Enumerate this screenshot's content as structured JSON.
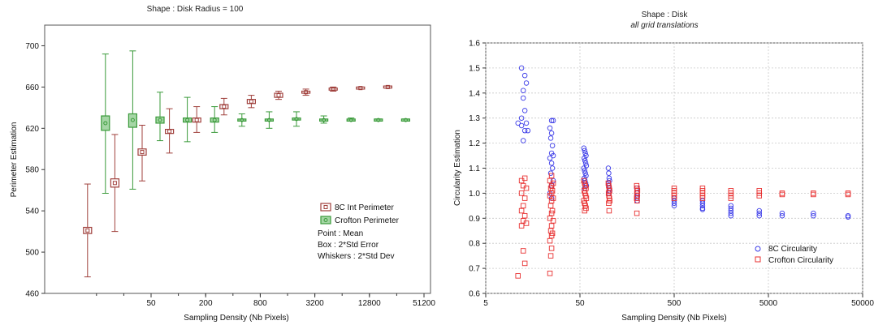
{
  "chart_data": [
    {
      "type": "box",
      "title": "Shape : Disk Radius = 100",
      "xlabel": "Sampling Density (Nb Pixels)",
      "ylabel": "Perimeter Estimation",
      "xscale": "log2",
      "xticks": [
        "50",
        "200",
        "800",
        "3200",
        "12800",
        "51200"
      ],
      "yticks": [
        460,
        500,
        540,
        580,
        620,
        660,
        700
      ],
      "ylim": [
        460,
        720
      ],
      "grid": false,
      "legend_position": "bottom-right",
      "legend_notes": [
        "Point : Mean",
        "Box : 2*Std Error",
        "Whiskers : 2*Std Dev"
      ],
      "series": [
        {
          "name": "8C Int Perimeter",
          "color": "#a0403c",
          "points": [
            {
              "x": 12.5,
              "mean": 521,
              "box": [
                518,
                524
              ],
              "whisker": [
                476,
                566
              ]
            },
            {
              "x": 25,
              "mean": 567,
              "box": [
                563,
                571
              ],
              "whisker": [
                520,
                614
              ]
            },
            {
              "x": 50,
              "mean": 597,
              "box": [
                594,
                600
              ],
              "whisker": [
                569,
                623
              ]
            },
            {
              "x": 100,
              "mean": 617,
              "box": [
                615,
                619
              ],
              "whisker": [
                596,
                639
              ]
            },
            {
              "x": 200,
              "mean": 628,
              "box": [
                626,
                630
              ],
              "whisker": [
                616,
                641
              ]
            },
            {
              "x": 400,
              "mean": 641,
              "box": [
                639,
                643
              ],
              "whisker": [
                633,
                649
              ]
            },
            {
              "x": 800,
              "mean": 646,
              "box": [
                644,
                648
              ],
              "whisker": [
                640,
                652
              ]
            },
            {
              "x": 1600,
              "mean": 652,
              "box": [
                650,
                654
              ],
              "whisker": [
                648,
                656
              ]
            },
            {
              "x": 3200,
              "mean": 655,
              "box": [
                654,
                656
              ],
              "whisker": [
                652,
                658
              ]
            },
            {
              "x": 6400,
              "mean": 658,
              "box": [
                657,
                659
              ],
              "whisker": [
                656,
                660
              ]
            },
            {
              "x": 12800,
              "mean": 659,
              "box": [
                658,
                660
              ],
              "whisker": [
                658,
                660
              ]
            },
            {
              "x": 25600,
              "mean": 660,
              "box": [
                659,
                661
              ],
              "whisker": [
                659,
                661
              ]
            }
          ]
        },
        {
          "name": "Crofton Perimeter",
          "color": "#3a9a3a",
          "points": [
            {
              "x": 12.5,
              "mean": 625,
              "box": [
                618,
                632
              ],
              "whisker": [
                557,
                692
              ]
            },
            {
              "x": 25,
              "mean": 628,
              "box": [
                621,
                634
              ],
              "whisker": [
                561,
                695
              ]
            },
            {
              "x": 50,
              "mean": 628,
              "box": [
                625,
                631
              ],
              "whisker": [
                608,
                655
              ]
            },
            {
              "x": 100,
              "mean": 628,
              "box": [
                626,
                630
              ],
              "whisker": [
                607,
                650
              ]
            },
            {
              "x": 200,
              "mean": 628,
              "box": [
                626,
                630
              ],
              "whisker": [
                616,
                641
              ]
            },
            {
              "x": 400,
              "mean": 628,
              "box": [
                627,
                629
              ],
              "whisker": [
                622,
                634
              ]
            },
            {
              "x": 800,
              "mean": 628,
              "box": [
                627,
                629
              ],
              "whisker": [
                620,
                636
              ]
            },
            {
              "x": 1600,
              "mean": 629,
              "box": [
                628,
                630
              ],
              "whisker": [
                622,
                636
              ]
            },
            {
              "x": 3200,
              "mean": 628,
              "box": [
                627,
                629
              ],
              "whisker": [
                625,
                632
              ]
            },
            {
              "x": 6400,
              "mean": 628,
              "box": [
                627,
                629
              ],
              "whisker": [
                627,
                630
              ]
            },
            {
              "x": 12800,
              "mean": 628,
              "box": [
                627,
                629
              ],
              "whisker": [
                627,
                629
              ]
            },
            {
              "x": 25600,
              "mean": 628,
              "box": [
                627,
                629
              ],
              "whisker": [
                627,
                629
              ]
            }
          ]
        }
      ]
    },
    {
      "type": "scatter",
      "title": "Shape : Disk",
      "subtitle": "all grid translations",
      "xlabel": "Sampling Density (Nb Pixels)",
      "ylabel": "Circularity Estimation",
      "xscale": "log10",
      "xticks": [
        5,
        50,
        500,
        5000,
        50000
      ],
      "xlim": [
        5,
        50000
      ],
      "yticks": [
        0.6,
        0.7,
        0.8,
        0.9,
        1.0,
        1.1,
        1.2,
        1.3,
        1.4,
        1.5,
        1.6
      ],
      "ylim": [
        0.6,
        1.6
      ],
      "grid": true,
      "legend_position": "bottom-right",
      "series": [
        {
          "name": "8C Circularity",
          "color": "#3a3ae8",
          "marker": "circle",
          "points": [
            [
              12,
              1.5
            ],
            [
              12.5,
              1.38
            ],
            [
              13,
              1.47
            ],
            [
              13.5,
              1.44
            ],
            [
              12.5,
              1.41
            ],
            [
              13,
              1.33
            ],
            [
              12,
              1.3
            ],
            [
              12.5,
              1.21
            ],
            [
              13,
              1.25
            ],
            [
              12,
              1.27
            ],
            [
              13.5,
              1.28
            ],
            [
              14,
              1.25
            ],
            [
              11,
              1.28
            ],
            [
              25,
              1.29
            ],
            [
              24,
              1.26
            ],
            [
              26,
              1.29
            ],
            [
              25,
              1.24
            ],
            [
              24.5,
              1.22
            ],
            [
              25.5,
              1.19
            ],
            [
              25,
              1.16
            ],
            [
              26,
              1.15
            ],
            [
              24,
              1.14
            ],
            [
              25,
              1.12
            ],
            [
              25.5,
              1.1
            ],
            [
              24.5,
              1.08
            ],
            [
              26,
              1.05
            ],
            [
              25,
              1.03
            ],
            [
              24,
              1.0
            ],
            [
              25,
              0.98
            ],
            [
              55,
              1.18
            ],
            [
              56,
              1.17
            ],
            [
              57,
              1.16
            ],
            [
              58,
              1.15
            ],
            [
              55.5,
              1.14
            ],
            [
              56.5,
              1.13
            ],
            [
              57.5,
              1.12
            ],
            [
              58.5,
              1.11
            ],
            [
              55,
              1.1
            ],
            [
              56,
              1.09
            ],
            [
              57,
              1.08
            ],
            [
              58,
              1.07
            ],
            [
              55.5,
              1.06
            ],
            [
              56.5,
              1.05
            ],
            [
              57.5,
              1.04
            ],
            [
              58.5,
              1.03
            ],
            [
              56,
              1.02
            ],
            [
              100,
              1.1
            ],
            [
              101,
              1.08
            ],
            [
              102,
              1.06
            ],
            [
              103,
              1.05
            ],
            [
              100.5,
              1.04
            ],
            [
              101.5,
              1.03
            ],
            [
              102.5,
              1.02
            ],
            [
              103.5,
              1.01
            ],
            [
              101,
              1.0
            ],
            [
              200,
              1.02
            ],
            [
              202,
              1.0
            ],
            [
              204,
              0.99
            ],
            [
              201,
              0.98
            ],
            [
              203,
              0.97
            ],
            [
              500,
              0.98
            ],
            [
              500,
              0.97
            ],
            [
              500,
              0.96
            ],
            [
              500,
              0.95
            ],
            [
              1000,
              0.97
            ],
            [
              1000,
              0.96
            ],
            [
              1000,
              0.95
            ],
            [
              1000,
              0.94
            ],
            [
              1000,
              0.935
            ],
            [
              2000,
              0.95
            ],
            [
              2000,
              0.94
            ],
            [
              2000,
              0.93
            ],
            [
              2000,
              0.92
            ],
            [
              2000,
              0.91
            ],
            [
              4000,
              0.93
            ],
            [
              4000,
              0.92
            ],
            [
              4000,
              0.91
            ],
            [
              7000,
              0.92
            ],
            [
              7000,
              0.91
            ],
            [
              15000,
              0.92
            ],
            [
              15000,
              0.91
            ],
            [
              35000,
              0.91
            ],
            [
              35000,
              0.905
            ]
          ]
        },
        {
          "name": "Crofton Circularity",
          "color": "#e83030",
          "marker": "square",
          "points": [
            [
              12,
              1.05
            ],
            [
              13,
              1.06
            ],
            [
              12.5,
              1.03
            ],
            [
              13.5,
              1.02
            ],
            [
              12,
              1.0
            ],
            [
              13,
              0.98
            ],
            [
              12.5,
              0.95
            ],
            [
              12,
              0.93
            ],
            [
              13,
              0.91
            ],
            [
              12.5,
              0.89
            ],
            [
              13.5,
              0.88
            ],
            [
              12,
              0.87
            ],
            [
              12.5,
              0.77
            ],
            [
              13,
              0.72
            ],
            [
              11,
              0.67
            ],
            [
              25,
              1.07
            ],
            [
              24,
              1.05
            ],
            [
              26,
              1.04
            ],
            [
              25,
              1.03
            ],
            [
              24.5,
              1.02
            ],
            [
              25.5,
              1.01
            ],
            [
              25,
              1.0
            ],
            [
              24,
              0.99
            ],
            [
              26,
              0.98
            ],
            [
              25,
              0.97
            ],
            [
              24.5,
              0.95
            ],
            [
              25.5,
              0.93
            ],
            [
              25,
              0.92
            ],
            [
              24,
              0.9
            ],
            [
              26,
              0.89
            ],
            [
              25,
              0.87
            ],
            [
              24.5,
              0.85
            ],
            [
              25.5,
              0.84
            ],
            [
              25,
              0.83
            ],
            [
              24,
              0.81
            ],
            [
              25,
              0.78
            ],
            [
              24.5,
              0.75
            ],
            [
              24,
              0.68
            ],
            [
              55,
              1.05
            ],
            [
              56,
              1.04
            ],
            [
              57,
              1.03
            ],
            [
              58,
              1.02
            ],
            [
              55.5,
              1.01
            ],
            [
              56.5,
              1.0
            ],
            [
              57.5,
              0.99
            ],
            [
              58.5,
              0.98
            ],
            [
              55,
              0.97
            ],
            [
              56,
              0.96
            ],
            [
              57,
              0.95
            ],
            [
              58,
              0.94
            ],
            [
              56,
              0.93
            ],
            [
              100,
              1.04
            ],
            [
              101,
              1.03
            ],
            [
              102,
              1.02
            ],
            [
              103,
              1.01
            ],
            [
              100.5,
              1.0
            ],
            [
              101.5,
              0.99
            ],
            [
              102.5,
              0.98
            ],
            [
              103.5,
              0.97
            ],
            [
              101,
              0.96
            ],
            [
              102,
              0.93
            ],
            [
              200,
              1.03
            ],
            [
              202,
              1.02
            ],
            [
              204,
              1.01
            ],
            [
              201,
              1.0
            ],
            [
              203,
              0.99
            ],
            [
              200,
              0.98
            ],
            [
              202,
              0.97
            ],
            [
              201,
              0.92
            ],
            [
              500,
              1.02
            ],
            [
              500,
              1.01
            ],
            [
              500,
              1.0
            ],
            [
              500,
              0.99
            ],
            [
              500,
              0.98
            ],
            [
              1000,
              1.02
            ],
            [
              1000,
              1.01
            ],
            [
              1000,
              1.0
            ],
            [
              1000,
              0.99
            ],
            [
              1000,
              0.98
            ],
            [
              2000,
              1.01
            ],
            [
              2000,
              1.0
            ],
            [
              2000,
              0.99
            ],
            [
              2000,
              0.98
            ],
            [
              4000,
              1.01
            ],
            [
              4000,
              1.0
            ],
            [
              4000,
              0.99
            ],
            [
              7000,
              1.0
            ],
            [
              7000,
              0.995
            ],
            [
              15000,
              1.0
            ],
            [
              15000,
              0.995
            ],
            [
              35000,
              1.0
            ],
            [
              35000,
              0.995
            ]
          ]
        }
      ]
    }
  ]
}
